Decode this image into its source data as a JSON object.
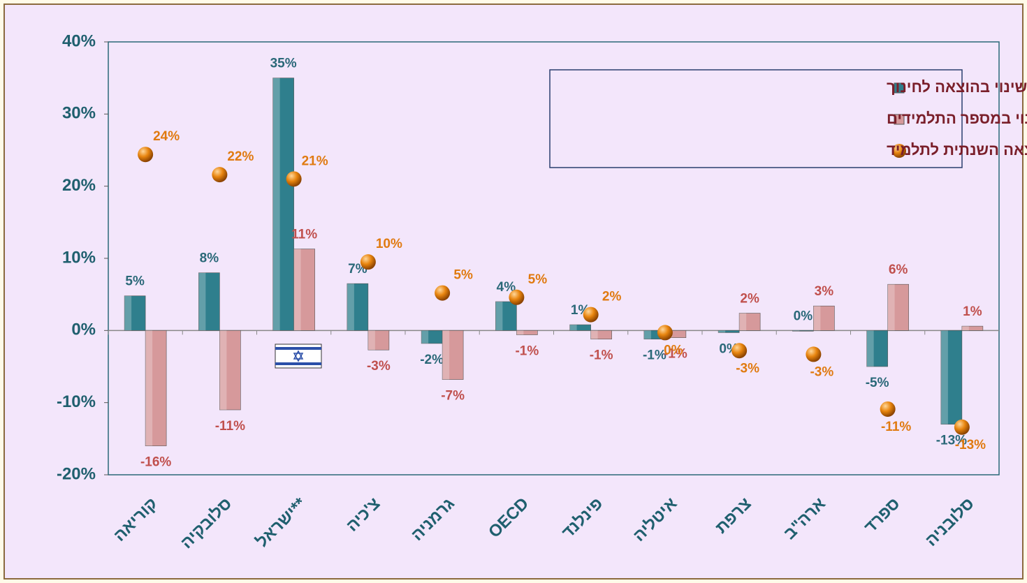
{
  "chart_data": {
    "type": "bar",
    "categories": [
      "קוריאה",
      "סלובקיה",
      "ישראל**",
      "צ'כיה",
      "גרמניה",
      "OECD",
      "פינלנד",
      "איטליה",
      "צרפת",
      "ארה\"ב",
      "ספרד",
      "סלובניה"
    ],
    "series": [
      {
        "name": "השינוי בהוצאה לחינוך",
        "type": "bar",
        "color": "#2f7f8d",
        "label_color": "#2a6878",
        "values": [
          4.8,
          8,
          35,
          6.5,
          -1.8,
          4,
          0.8,
          -1.2,
          -0.3,
          0,
          -5,
          -13
        ],
        "value_labels": [
          "5%",
          "8%",
          "35%",
          "7%",
          "-2%",
          "4%",
          "1%",
          "-1%",
          "0%",
          "0%",
          "-5%",
          "-13%"
        ]
      },
      {
        "name": "השינוי במספר התלמידים",
        "type": "bar",
        "color": "#d6999b",
        "label_color": "#c0504d",
        "values": [
          -16,
          -11,
          11.3,
          -2.7,
          -6.8,
          -0.6,
          -1.2,
          -1,
          2.4,
          3.4,
          6.4,
          0.6
        ],
        "value_labels": [
          "-16%",
          "-11%",
          "11%",
          "-3%",
          "-7%",
          "-1%",
          "-1%",
          "-1%",
          "2%",
          "3%",
          "6%",
          "1%"
        ]
      },
      {
        "name": "השינוי בהוצאה השנתית לתלמיד",
        "type": "scatter",
        "color": "#e8850f",
        "label_color": "#e07a10",
        "values": [
          24.4,
          21.6,
          21,
          9.5,
          5.2,
          4.6,
          2.2,
          -0.3,
          -2.8,
          -3.3,
          -10.9,
          -13.4
        ],
        "value_labels": [
          "24%",
          "22%",
          "21%",
          "10%",
          "5%",
          "5%",
          "2%",
          "0%",
          "-3%",
          "-3%",
          "-11%",
          "-13%"
        ]
      }
    ],
    "ylim": [
      -20,
      40
    ],
    "yticks": [
      {
        "value": -20,
        "label": "-20%"
      },
      {
        "value": -10,
        "label": "-10%"
      },
      {
        "value": 0,
        "label": "0%"
      },
      {
        "value": 10,
        "label": "10%"
      },
      {
        "value": 20,
        "label": "20%"
      },
      {
        "value": 30,
        "label": "30%"
      },
      {
        "value": 40,
        "label": "40%"
      }
    ],
    "legend": "upper right"
  }
}
